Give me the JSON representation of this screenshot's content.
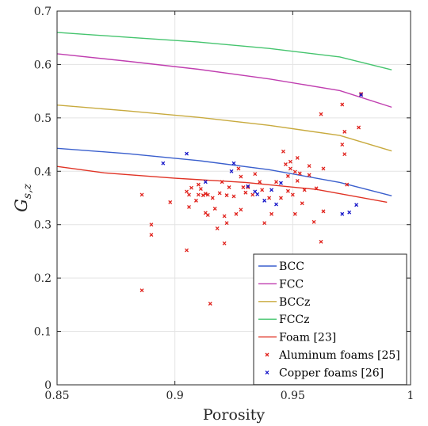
{
  "chart_data": {
    "type": "line",
    "xlabel": "Porosity",
    "ylabel": "G",
    "ylabel_subscript": "s,z",
    "xlim": [
      0.85,
      1
    ],
    "ylim": [
      0,
      0.7
    ],
    "x_ticks": [
      0.85,
      0.9,
      0.95,
      1
    ],
    "x_tick_labels": [
      "0.85",
      "0.9",
      "0.95",
      "1"
    ],
    "y_ticks": [
      0,
      0.1,
      0.2,
      0.3,
      0.4,
      0.5,
      0.6,
      0.7
    ],
    "y_tick_labels": [
      "0",
      "0.1",
      "0.2",
      "0.3",
      "0.4",
      "0.5",
      "0.6",
      "0.7"
    ],
    "grid": true,
    "legend_position": "bottom-right",
    "series": [
      {
        "name": "BCC",
        "kind": "line",
        "color": "#3a5fcd",
        "x": [
          0.85,
          0.88,
          0.91,
          0.94,
          0.97,
          0.992
        ],
        "y": [
          0.443,
          0.433,
          0.42,
          0.403,
          0.379,
          0.354
        ]
      },
      {
        "name": "FCC",
        "kind": "line",
        "color": "#c03fb0",
        "x": [
          0.85,
          0.88,
          0.91,
          0.94,
          0.97,
          0.992
        ],
        "y": [
          0.62,
          0.606,
          0.591,
          0.573,
          0.551,
          0.52
        ]
      },
      {
        "name": "BCCz",
        "kind": "line",
        "color": "#c8aa3e",
        "x": [
          0.85,
          0.88,
          0.91,
          0.94,
          0.97,
          0.992
        ],
        "y": [
          0.524,
          0.513,
          0.501,
          0.486,
          0.467,
          0.438
        ]
      },
      {
        "name": "FCCz",
        "kind": "line",
        "color": "#45c46e",
        "x": [
          0.85,
          0.88,
          0.91,
          0.94,
          0.97,
          0.992
        ],
        "y": [
          0.66,
          0.651,
          0.642,
          0.63,
          0.614,
          0.59
        ]
      },
      {
        "name": "Foam [23]",
        "kind": "line",
        "color": "#e03325",
        "x": [
          0.85,
          0.87,
          0.9,
          0.93,
          0.96,
          0.99
        ],
        "y": [
          0.409,
          0.397,
          0.387,
          0.379,
          0.366,
          0.342
        ]
      },
      {
        "name": "Aluminum foams [25]",
        "kind": "scatter",
        "color": "#e0201a",
        "x": [
          0.886,
          0.886,
          0.89,
          0.89,
          0.898,
          0.905,
          0.905,
          0.906,
          0.906,
          0.907,
          0.909,
          0.91,
          0.91,
          0.911,
          0.912,
          0.913,
          0.913,
          0.914,
          0.914,
          0.915,
          0.916,
          0.917,
          0.918,
          0.919,
          0.92,
          0.921,
          0.921,
          0.922,
          0.922,
          0.923,
          0.925,
          0.926,
          0.927,
          0.928,
          0.928,
          0.929,
          0.93,
          0.931,
          0.933,
          0.934,
          0.936,
          0.937,
          0.938,
          0.94,
          0.941,
          0.943,
          0.945,
          0.946,
          0.947,
          0.948,
          0.948,
          0.949,
          0.949,
          0.95,
          0.951,
          0.951,
          0.952,
          0.952,
          0.953,
          0.954,
          0.955,
          0.957,
          0.957,
          0.959,
          0.96,
          0.962,
          0.962,
          0.963,
          0.963,
          0.971,
          0.971,
          0.972,
          0.972,
          0.973,
          0.978,
          0.979
        ],
        "y": [
          0.356,
          0.177,
          0.3,
          0.281,
          0.342,
          0.252,
          0.362,
          0.356,
          0.333,
          0.369,
          0.345,
          0.356,
          0.375,
          0.367,
          0.355,
          0.358,
          0.322,
          0.318,
          0.356,
          0.152,
          0.35,
          0.33,
          0.293,
          0.359,
          0.38,
          0.316,
          0.265,
          0.355,
          0.303,
          0.37,
          0.353,
          0.32,
          0.405,
          0.39,
          0.328,
          0.37,
          0.36,
          0.37,
          0.356,
          0.395,
          0.38,
          0.365,
          0.303,
          0.35,
          0.32,
          0.38,
          0.35,
          0.437,
          0.413,
          0.363,
          0.391,
          0.418,
          0.405,
          0.356,
          0.399,
          0.32,
          0.425,
          0.382,
          0.396,
          0.34,
          0.365,
          0.393,
          0.41,
          0.305,
          0.368,
          0.268,
          0.507,
          0.405,
          0.325,
          0.525,
          0.45,
          0.474,
          0.432,
          0.375,
          0.482,
          0.545
        ]
      },
      {
        "name": "Copper foams [26]",
        "kind": "scatter",
        "color": "#1414c8",
        "x": [
          0.895,
          0.905,
          0.913,
          0.924,
          0.925,
          0.931,
          0.934,
          0.935,
          0.938,
          0.941,
          0.943,
          0.945,
          0.971,
          0.974,
          0.977,
          0.979
        ],
        "y": [
          0.415,
          0.433,
          0.38,
          0.4,
          0.415,
          0.372,
          0.362,
          0.357,
          0.345,
          0.365,
          0.338,
          0.378,
          0.32,
          0.323,
          0.337,
          0.543
        ]
      }
    ]
  }
}
